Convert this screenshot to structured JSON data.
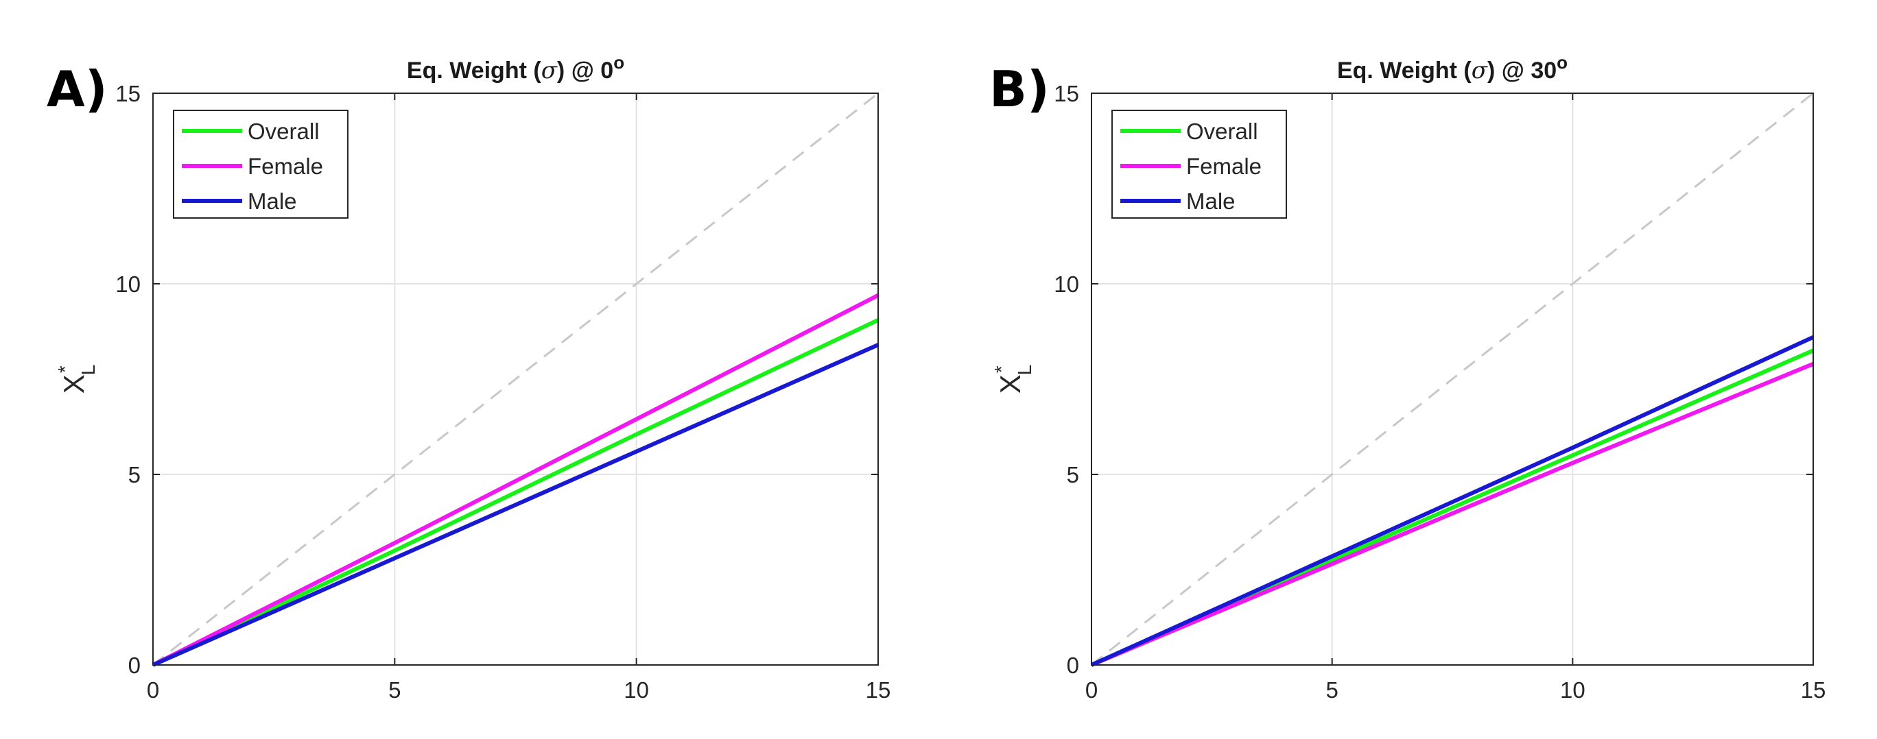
{
  "chart_data": [
    {
      "type": "line",
      "panel_label": "A)",
      "title_prefix": "Eq. Weight (",
      "title_symbol": "σ",
      "title_mid": ") @ 0",
      "title_degree": "o",
      "xlabel": "",
      "ylabel_base": "X",
      "ylabel_sup": "*",
      "ylabel_sub": "L",
      "xlim": [
        0,
        15
      ],
      "ylim": [
        0,
        15
      ],
      "xticks": [
        0,
        5,
        10,
        15
      ],
      "yticks": [
        0,
        5,
        10,
        15
      ],
      "grid": true,
      "legend_position": "top-left",
      "reference_line": {
        "style": "dashed",
        "color": "#c8c8c8",
        "x": [
          0,
          15
        ],
        "y": [
          0,
          15
        ]
      },
      "series": [
        {
          "name": "Overall",
          "color": "#19f019",
          "x": [
            0,
            5,
            10,
            15
          ],
          "y": [
            0,
            3.0,
            6.05,
            9.05
          ]
        },
        {
          "name": "Female",
          "color": "#f019f0",
          "x": [
            0,
            5,
            10,
            15
          ],
          "y": [
            0,
            3.2,
            6.45,
            9.7
          ]
        },
        {
          "name": "Male",
          "color": "#1919d2",
          "x": [
            0,
            5,
            10,
            15
          ],
          "y": [
            0,
            2.8,
            5.6,
            8.4
          ]
        }
      ]
    },
    {
      "type": "line",
      "panel_label": "B)",
      "title_prefix": "Eq. Weight (",
      "title_symbol": "σ",
      "title_mid": ") @ 30",
      "title_degree": "o",
      "xlabel": "",
      "ylabel_base": "X",
      "ylabel_sup": "*",
      "ylabel_sub": "L",
      "xlim": [
        0,
        15
      ],
      "ylim": [
        0,
        15
      ],
      "xticks": [
        0,
        5,
        10,
        15
      ],
      "yticks": [
        0,
        5,
        10,
        15
      ],
      "grid": true,
      "legend_position": "top-left",
      "reference_line": {
        "style": "dashed",
        "color": "#c8c8c8",
        "x": [
          0,
          15
        ],
        "y": [
          0,
          15
        ]
      },
      "series": [
        {
          "name": "Overall",
          "color": "#19f019",
          "x": [
            0,
            5,
            10,
            15
          ],
          "y": [
            0,
            2.75,
            5.5,
            8.25
          ]
        },
        {
          "name": "Female",
          "color": "#f019f0",
          "x": [
            0,
            5,
            10,
            15
          ],
          "y": [
            0,
            2.65,
            5.3,
            7.9
          ]
        },
        {
          "name": "Male",
          "color": "#1919d2",
          "x": [
            0,
            5,
            10,
            15
          ],
          "y": [
            0,
            2.85,
            5.7,
            8.6
          ]
        }
      ]
    }
  ]
}
